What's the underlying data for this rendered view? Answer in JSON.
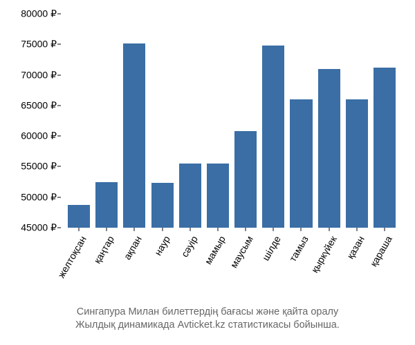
{
  "chart": {
    "type": "bar",
    "background_color": "#ffffff",
    "bar_color": "#3a6ea5",
    "axis_color": "#000000",
    "tick_font_size": 14,
    "caption_color": "#666666",
    "caption_font_size": 14.5,
    "currency_suffix": " ₽",
    "ylim": [
      45000,
      80000
    ],
    "ytick_step": 5000,
    "yticks": [
      {
        "v": 45000,
        "label": "45000 ₽"
      },
      {
        "v": 50000,
        "label": "50000 ₽"
      },
      {
        "v": 55000,
        "label": "55000 ₽"
      },
      {
        "v": 60000,
        "label": "60000 ₽"
      },
      {
        "v": 65000,
        "label": "65000 ₽"
      },
      {
        "v": 70000,
        "label": "70000 ₽"
      },
      {
        "v": 75000,
        "label": "75000 ₽"
      },
      {
        "v": 80000,
        "label": "80000 ₽"
      }
    ],
    "categories": [
      "желтоқсан",
      "қаңтар",
      "ақпан",
      "наур",
      "сәуір",
      "мамыр",
      "маусым",
      "шілде",
      "тамыз",
      "қыркүйек",
      "қазан",
      "қараша"
    ],
    "values": [
      48700,
      52500,
      75200,
      52300,
      55500,
      55500,
      60800,
      74800,
      66000,
      71000,
      66000,
      71200
    ],
    "bar_width_ratio": 0.8,
    "caption_line1": "Сингапура Милан билеттердің бағасы және қайта оралу",
    "caption_line2": "Жылдық динамикада Avticket.kz статистикасы бойынша."
  }
}
